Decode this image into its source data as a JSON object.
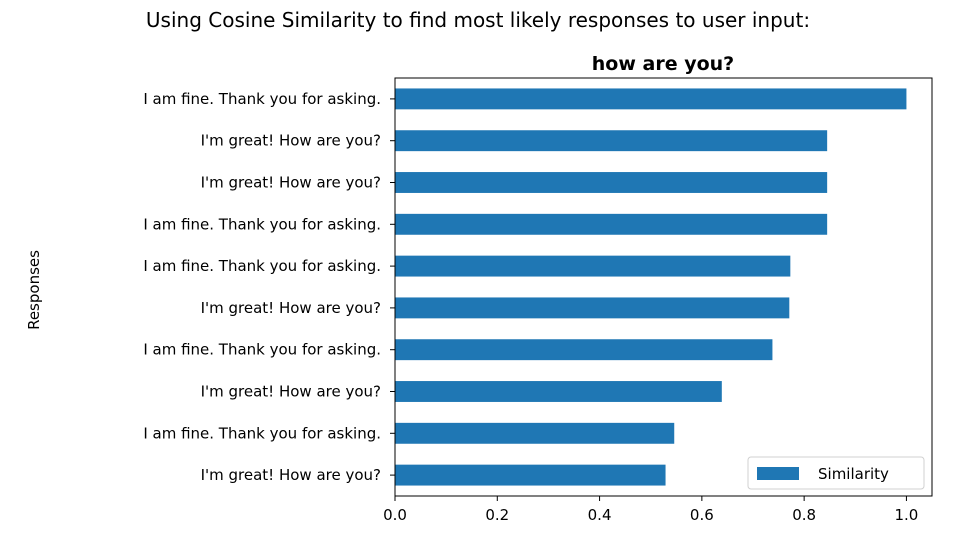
{
  "suptitle": "Using Cosine Similarity to find most likely responses to user input:",
  "chart_data": {
    "type": "bar",
    "orientation": "horizontal",
    "title": "how are you?",
    "xlabel": "",
    "ylabel": "Responses",
    "categories": [
      "I am fine. Thank you for asking.",
      "I'm great! How are you?",
      "I'm great! How are you?",
      "I am fine. Thank you for asking.",
      "I am fine. Thank you for asking.",
      "I'm great! How are you?",
      "I am fine. Thank you for asking.",
      "I'm great! How are you?",
      "I am fine. Thank you for asking.",
      "I'm great! How are you?"
    ],
    "series": [
      {
        "name": "Similarity",
        "values": [
          1.0,
          0.845,
          0.845,
          0.845,
          0.773,
          0.771,
          0.738,
          0.639,
          0.546,
          0.529
        ]
      }
    ],
    "xlim": [
      0,
      1.05
    ],
    "xticks": [
      "0.0",
      "0.2",
      "0.4",
      "0.6",
      "0.8",
      "1.0"
    ],
    "grid": false,
    "legend_position": "lower-right",
    "bar_color": "#1f77b4"
  }
}
